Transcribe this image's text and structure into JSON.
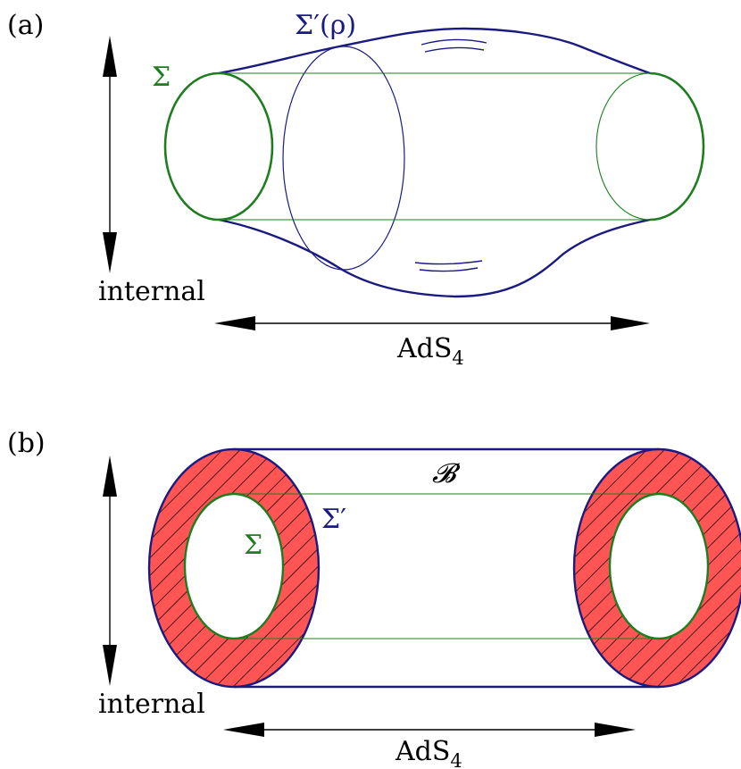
{
  "panel_a": {
    "tag": "(a)",
    "sigma_label": "Σ",
    "sigma_prime_rho_label": "Σ′(ρ)",
    "vertical_axis_label": "internal",
    "horizontal_axis_label": "AdS",
    "horizontal_axis_subscript": "4"
  },
  "panel_b": {
    "tag": "(b)",
    "boundary_label": "𝓑",
    "sigma_prime_label": "Σ′",
    "sigma_label": "Σ",
    "vertical_axis_label": "internal",
    "horizontal_axis_label": "AdS",
    "horizontal_axis_subscript": "4"
  },
  "colors": {
    "green": "#1e7d1e",
    "navy": "#1a1a80",
    "red_fill": "#ff5555",
    "hatch": "#000000"
  }
}
